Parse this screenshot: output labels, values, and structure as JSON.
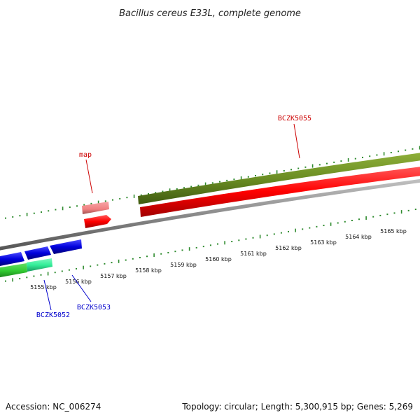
{
  "title": "Bacillus cereus E33L, complete genome",
  "footer": {
    "accession": "Accession: NC_006274",
    "summary": "Topology: circular; Length: 5,300,915 bp; Genes: 5,269"
  },
  "colors": {
    "background": "#ffffff",
    "backbone": "#8a8a8a",
    "ticks": "#2e8b2e",
    "outer_gene": "#6b8e23",
    "outer_gene_dark": "#4d6b15",
    "cds_red": "#ff0000",
    "cds_red_dark": "#b00000",
    "cds_pink": "#f08080",
    "cds_blue": "#0000dd",
    "cds_blue_dark": "#000088",
    "rna_green": "#33cc33",
    "rna_cyan": "#33ee99",
    "label_red": "#cc0000",
    "label_blue": "#0000cc"
  },
  "scale": {
    "tick_labels": [
      "5155 kbp",
      "5156 kbp",
      "5157 kbp",
      "5158 kbp",
      "5159 kbp",
      "5160 kbp",
      "5161 kbp",
      "5162 kbp",
      "5163 kbp",
      "5164 kbp",
      "5165 kbp"
    ]
  },
  "gene_labels": {
    "bczk5055": "BCZK5055",
    "map": "map",
    "bczk5052": "BCZK5052",
    "bczk5053": "BCZK5053"
  }
}
